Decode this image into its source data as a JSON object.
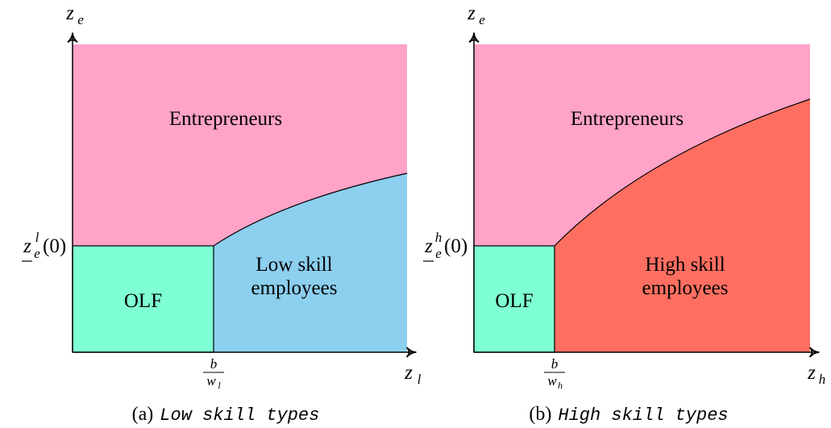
{
  "panels": [
    {
      "y_axis_label": {
        "base": "z",
        "sub": "e"
      },
      "x_axis_label": {
        "base": "z",
        "sub": "l"
      },
      "threshold_label": {
        "base": "z",
        "sub": "e",
        "sup": "l",
        "arg": "(0)"
      },
      "cutoff_label": {
        "numerator": "b",
        "denominator": {
          "base": "w",
          "sub": "l"
        }
      },
      "regions": {
        "entrepreneurs": "Entrepreneurs",
        "olf": "OLF",
        "employees": [
          "Low skill",
          "employees"
        ]
      },
      "caption": {
        "tag": "(a)",
        "text": "Low skill types"
      }
    },
    {
      "y_axis_label": {
        "base": "z",
        "sub": "e"
      },
      "x_axis_label": {
        "base": "z",
        "sub": "h"
      },
      "threshold_label": {
        "base": "z",
        "sub": "e",
        "sup": "h",
        "arg": "(0)"
      },
      "cutoff_label": {
        "numerator": "b",
        "denominator": {
          "base": "w",
          "sub": "h"
        }
      },
      "regions": {
        "entrepreneurs": "Entrepreneurs",
        "olf": "OLF",
        "employees": [
          "High skill",
          "employees"
        ]
      },
      "caption": {
        "tag": "(b)",
        "text": "High skill types"
      }
    }
  ]
}
